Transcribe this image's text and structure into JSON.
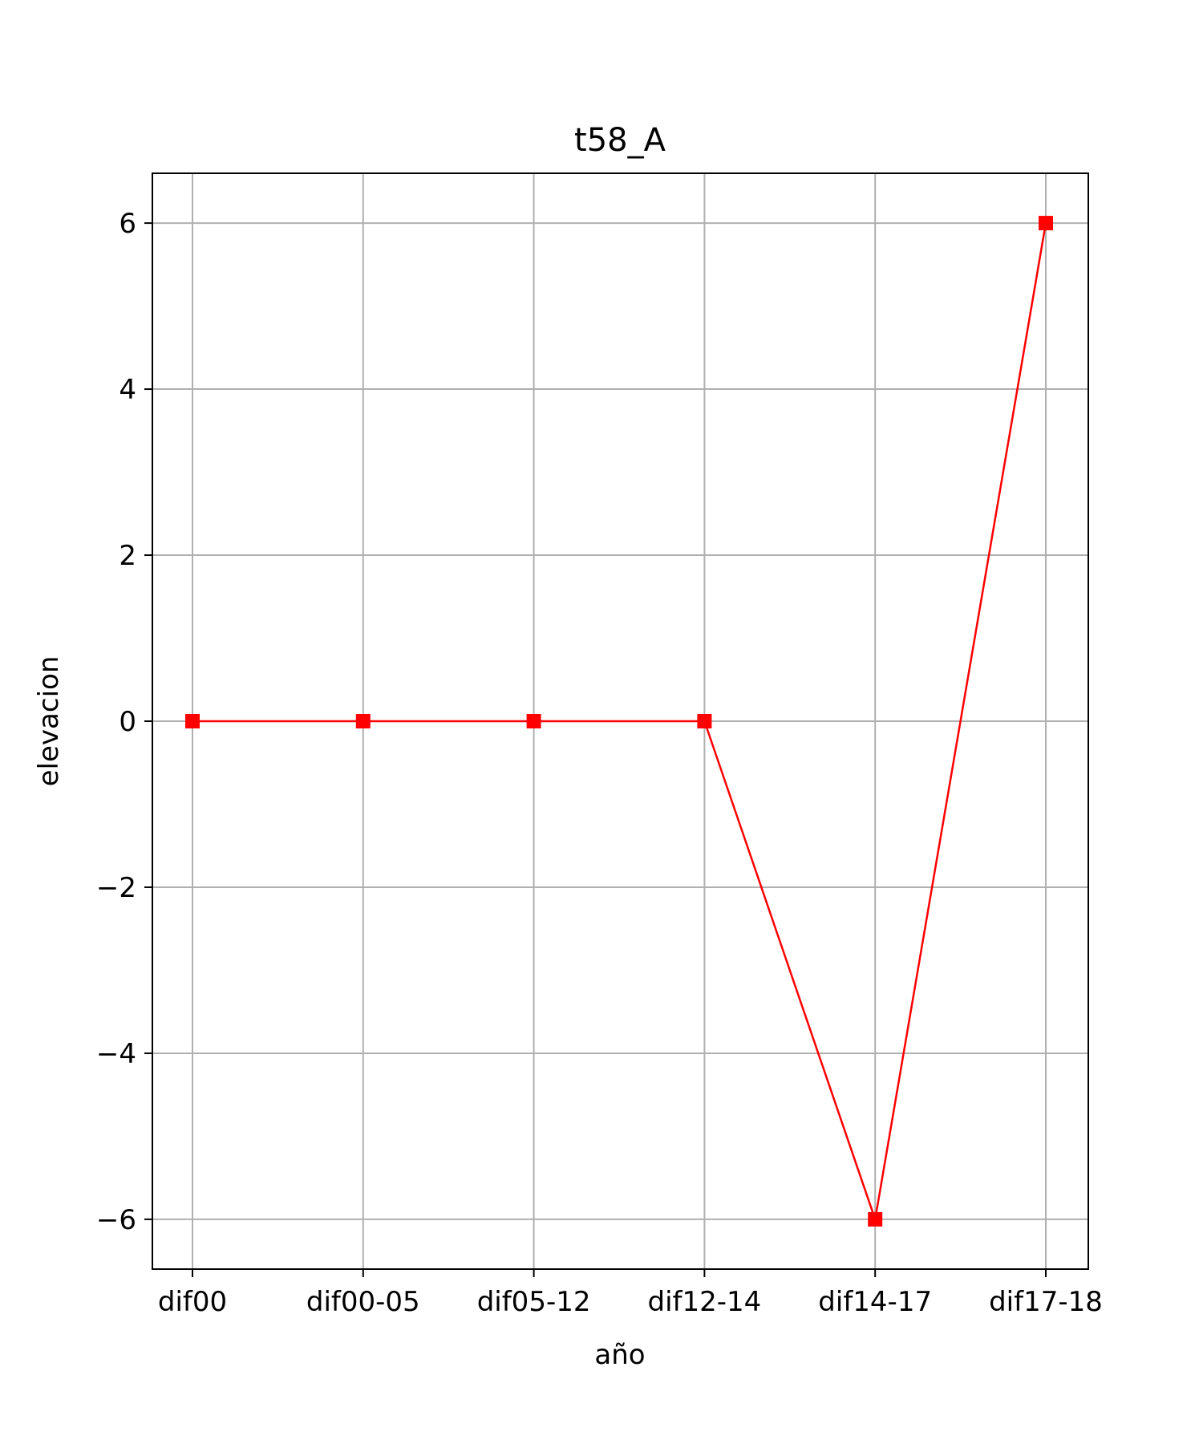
{
  "chart_data": {
    "type": "line",
    "title": "t58_A",
    "xlabel": "año",
    "ylabel": "elevacion",
    "categories": [
      "dif00",
      "dif00-05",
      "dif05-12",
      "dif12-14",
      "dif14-17",
      "dif17-18"
    ],
    "series": [
      {
        "values": [
          0,
          0,
          0,
          0,
          -6,
          6
        ],
        "color": "#ff0000",
        "marker": "square"
      }
    ],
    "ylim": [
      -6.6,
      6.6
    ],
    "yticks": [
      -6,
      -4,
      -2,
      0,
      2,
      4,
      6
    ],
    "ytick_labels": [
      "−6",
      "−4",
      "−2",
      "0",
      "2",
      "4",
      "6"
    ],
    "grid": true,
    "grid_color": "#b0b0b0"
  }
}
